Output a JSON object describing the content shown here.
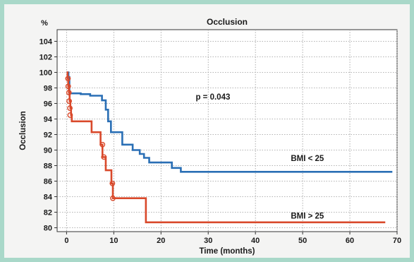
{
  "chart_data": {
    "type": "line",
    "step": true,
    "title": "Occlusion",
    "y_unit": "%",
    "xlabel": "Time (months)",
    "ylabel": "Occlusion",
    "xlim": [
      -2,
      70
    ],
    "ylim": [
      79.5,
      105.5
    ],
    "x_ticks": [
      0,
      10,
      20,
      30,
      40,
      50,
      60,
      70
    ],
    "y_ticks": [
      80,
      82,
      84,
      86,
      88,
      90,
      92,
      94,
      96,
      98,
      100,
      102,
      104
    ],
    "grid": true,
    "annotations": [
      {
        "text": "p = 0.043",
        "x": 31,
        "y": 96.5
      },
      {
        "text": "BMI  < 25",
        "x": 51,
        "y": 88.6
      },
      {
        "text": "BMI > 25",
        "x": 51,
        "y": 81.2
      }
    ],
    "series": [
      {
        "name": "BMI  < 25",
        "color": "#2a6fb5",
        "points": [
          [
            0,
            100
          ],
          [
            0.4,
            99.4
          ],
          [
            0.6,
            97.3
          ],
          [
            3,
            97.2
          ],
          [
            5,
            97.0
          ],
          [
            7.5,
            96.4
          ],
          [
            8.3,
            95.2
          ],
          [
            8.8,
            93.7
          ],
          [
            9.4,
            92.3
          ],
          [
            10.3,
            92.3
          ],
          [
            11.8,
            90.7
          ],
          [
            14,
            90.0
          ],
          [
            15.5,
            89.5
          ],
          [
            16.4,
            89.0
          ],
          [
            17.5,
            88.4
          ],
          [
            19,
            88.4
          ],
          [
            22.3,
            87.7
          ],
          [
            24.2,
            87.2
          ],
          [
            69,
            87.2
          ]
        ]
      },
      {
        "name": "BMI > 25",
        "color": "#d9492b",
        "points": [
          [
            0,
            100
          ],
          [
            0.2,
            99.2
          ],
          [
            0.35,
            98.2
          ],
          [
            0.5,
            97.4
          ],
          [
            0.65,
            96.3
          ],
          [
            0.8,
            95.4
          ],
          [
            0.95,
            94.5
          ],
          [
            1.1,
            93.7
          ],
          [
            5,
            93.7
          ],
          [
            5.3,
            92.3
          ],
          [
            6.8,
            92.3
          ],
          [
            7.2,
            90.7
          ],
          [
            7.6,
            89.1
          ],
          [
            8.3,
            87.4
          ],
          [
            9.5,
            85.7
          ],
          [
            9.8,
            83.8
          ],
          [
            16.3,
            83.8
          ],
          [
            16.8,
            80.7
          ],
          [
            67.5,
            80.7
          ]
        ],
        "markers": [
          [
            0.3,
            99.2
          ],
          [
            0.35,
            98.2
          ],
          [
            0.5,
            97.4
          ],
          [
            0.55,
            96.3
          ],
          [
            0.7,
            95.4
          ],
          [
            0.75,
            94.5
          ],
          [
            7.6,
            90.7
          ],
          [
            7.9,
            89.1
          ],
          [
            9.7,
            85.7
          ],
          [
            9.8,
            83.8
          ]
        ]
      }
    ]
  }
}
